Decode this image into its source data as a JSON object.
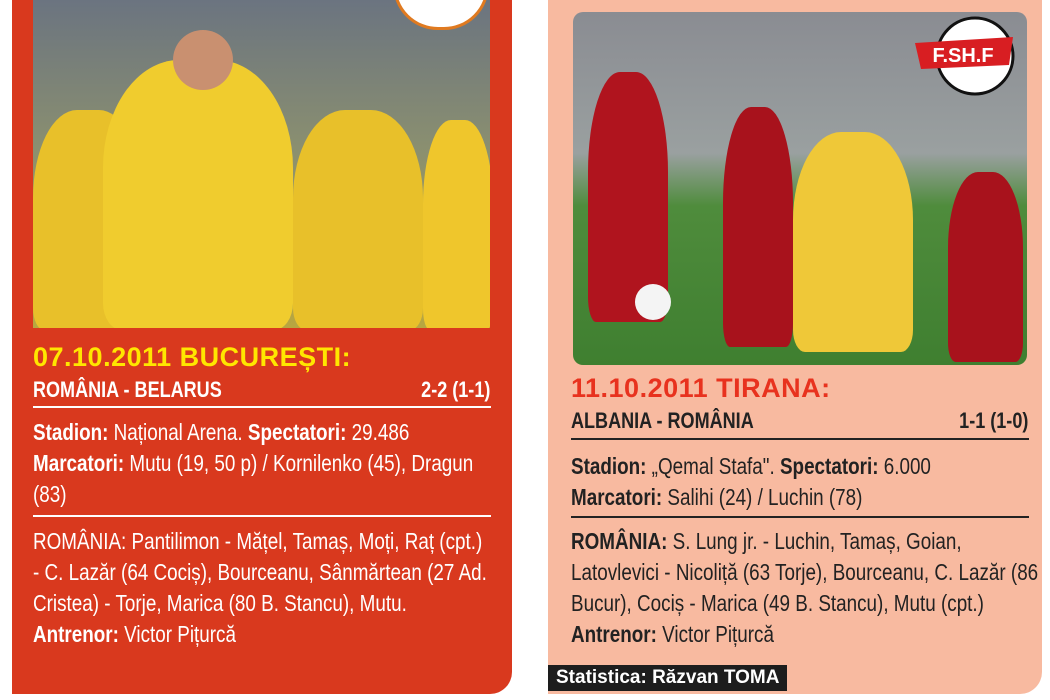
{
  "left": {
    "title": "07.10.2011 BUCUREȘTI:",
    "match": "ROMÂNIA - BELARUS",
    "score": "2-2 (1-1)",
    "stadium_label": "Stadion:",
    "stadium": " Național Arena. ",
    "spectators_label": "Spectatori:",
    "spectators": " 29.486",
    "scorers_label": "Marcatori:",
    "scorers": " Mutu (19, 50 p) / Kornilenko (45), Dragun (83)",
    "lineup": "ROMÂNIA: Pantilimon - Mățel, Tamaș, Moți, Raț (cpt.) - C. Lazăr (64 Cociș), Bourceanu, Sânmărtean (27 Ad. Cristea) - Torje, Marica (80 B. Stancu), Mutu. ",
    "coach_label": "Antrenor:",
    "coach": " Victor Pițurcă",
    "colors": {
      "panel": "#d9391e",
      "title": "#ffe600"
    }
  },
  "right": {
    "title": "11.10.2011 TIRANA:",
    "match": "ALBANIA - ROMÂNIA",
    "score": "1-1 (1-0)",
    "stadium_label": "Stadion:",
    "stadium": " „Qemal Stafa\". ",
    "spectators_label": "Spectatori:",
    "spectators": " 6.000",
    "scorers_label": "Marcatori:",
    "scorers": " Salihi (24) / Luchin (78)",
    "lineup_label": "ROMÂNIA:",
    "lineup": " S. Lung jr. - Luchin, Tamaș, Goian, Latovlevici - Nicoliță (63 Torje), Bourceanu, C. Lazăr (86 Bucur), Cociș - Marica (49 B. Stancu), Mutu (cpt.) ",
    "coach_label": "Antrenor:",
    "coach": " Victor Pițurcă",
    "logo_text": "F.SH.F",
    "credit": "Statistica: Răzvan TOMA",
    "colors": {
      "panel": "#f8baa0",
      "title": "#e8321e"
    }
  }
}
